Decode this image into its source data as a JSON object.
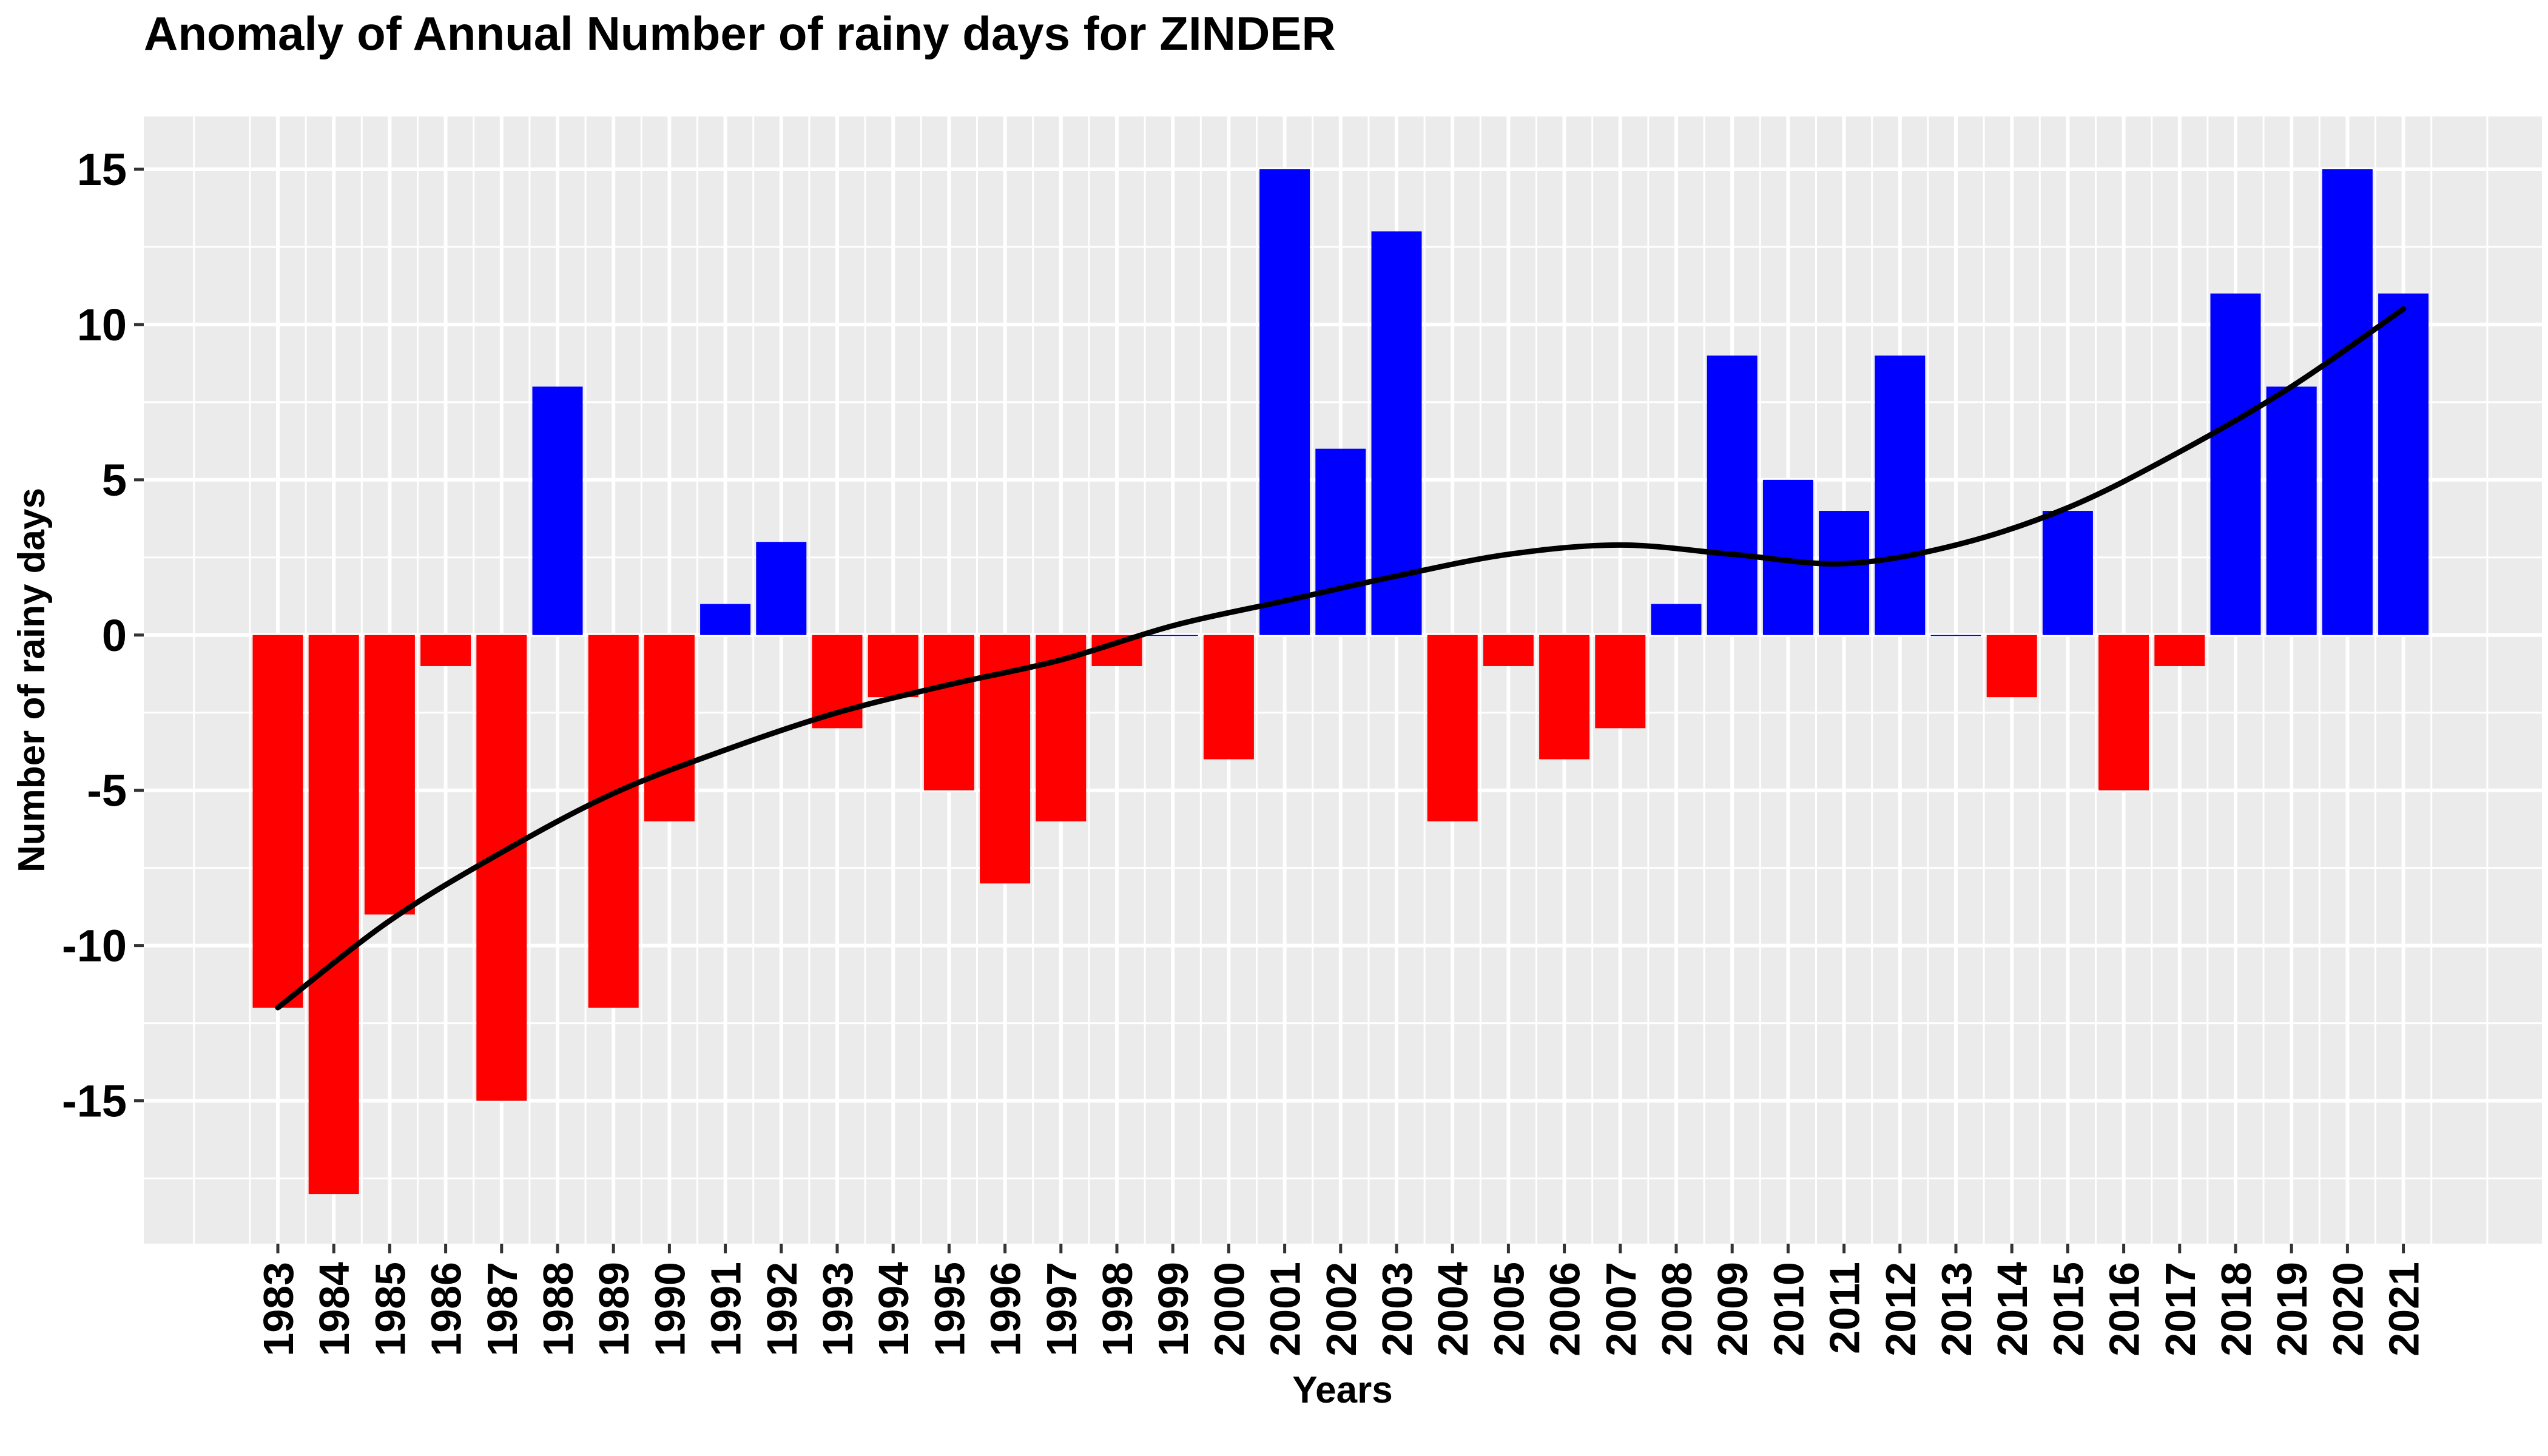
{
  "chart_data": {
    "type": "bar",
    "title": "Anomaly of Annual Number of rainy days for ZINDER",
    "xlabel": "Years",
    "ylabel": "Number of rainy days",
    "categories": [
      "1983",
      "1984",
      "1985",
      "1986",
      "1987",
      "1988",
      "1989",
      "1990",
      "1991",
      "1992",
      "1993",
      "1994",
      "1995",
      "1996",
      "1997",
      "1998",
      "1999",
      "2000",
      "2001",
      "2002",
      "2003",
      "2004",
      "2005",
      "2006",
      "2007",
      "2008",
      "2009",
      "2010",
      "2011",
      "2012",
      "2013",
      "2014",
      "2015",
      "2016",
      "2017",
      "2018",
      "2019",
      "2020",
      "2021"
    ],
    "values": [
      -12,
      -18,
      -9,
      -1,
      -15,
      8,
      -12,
      -6,
      1,
      3,
      -3,
      -2,
      -5,
      -8,
      -6,
      -1,
      0,
      -4,
      15,
      6,
      13,
      -6,
      -1,
      -4,
      -3,
      1,
      9,
      5,
      4,
      9,
      0,
      -2,
      4,
      -5,
      -1,
      11,
      8,
      15,
      11
    ],
    "ylim": [
      -19.6,
      16.7
    ],
    "yticks": [
      -15,
      -10,
      -5,
      0,
      5,
      10,
      15
    ],
    "grid": true,
    "legend": "none",
    "colors": {
      "positive": "#0000FF",
      "negative": "#FF0000",
      "trend": "#000000",
      "panel": "#EBEBEB",
      "gridline": "#FFFFFF"
    },
    "trend_line": {
      "x": [
        "1983",
        "1985",
        "1987",
        "1989",
        "1991",
        "1993",
        "1995",
        "1997",
        "1999",
        "2001",
        "2003",
        "2005",
        "2007",
        "2009",
        "2011",
        "2013",
        "2015",
        "2017",
        "2019",
        "2021"
      ],
      "y": [
        -12,
        -9.2,
        -7,
        -5.1,
        -3.7,
        -2.5,
        -1.6,
        -0.8,
        0.3,
        1.1,
        1.9,
        2.6,
        2.9,
        2.6,
        2.3,
        2.9,
        4.1,
        5.9,
        8,
        10.5
      ]
    }
  }
}
